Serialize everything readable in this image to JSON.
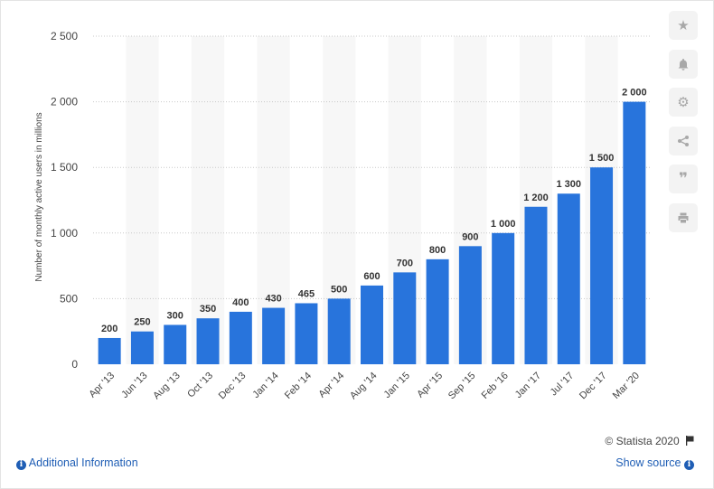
{
  "chart_data": {
    "type": "bar",
    "categories": [
      "Apr '13",
      "Jun '13",
      "Aug '13",
      "Oct '13",
      "Dec '13",
      "Jan '14",
      "Feb '14",
      "Apr '14",
      "Aug '14",
      "Jan '15",
      "Apr '15",
      "Sep '15",
      "Feb '16",
      "Jan '17",
      "Jul '17",
      "Dec '17",
      "Mar '20"
    ],
    "values": [
      200,
      250,
      300,
      350,
      400,
      430,
      465,
      500,
      600,
      700,
      800,
      900,
      1000,
      1200,
      1300,
      1500,
      2000
    ],
    "value_labels": [
      "200",
      "250",
      "300",
      "350",
      "400",
      "430",
      "465",
      "500",
      "600",
      "700",
      "800",
      "900",
      "1 000",
      "1 200",
      "1 300",
      "1 500",
      "2 000"
    ],
    "ylabel": "Number of monthly active users in millions",
    "ylim": [
      0,
      2500
    ],
    "yticks": [
      0,
      500,
      1000,
      1500,
      2000,
      2500
    ],
    "ytick_labels": [
      "0",
      "500",
      "1 000",
      "1 500",
      "2 000",
      "2 500"
    ],
    "bar_color": "#2874dc",
    "grid": true
  },
  "footer": {
    "copyright": "© Statista 2020",
    "additional_info": "Additional Information",
    "show_source": "Show source"
  },
  "toolbar": {
    "icons": [
      "star-icon",
      "bell-icon",
      "gear-icon",
      "share-icon",
      "quote-icon",
      "print-icon"
    ]
  }
}
